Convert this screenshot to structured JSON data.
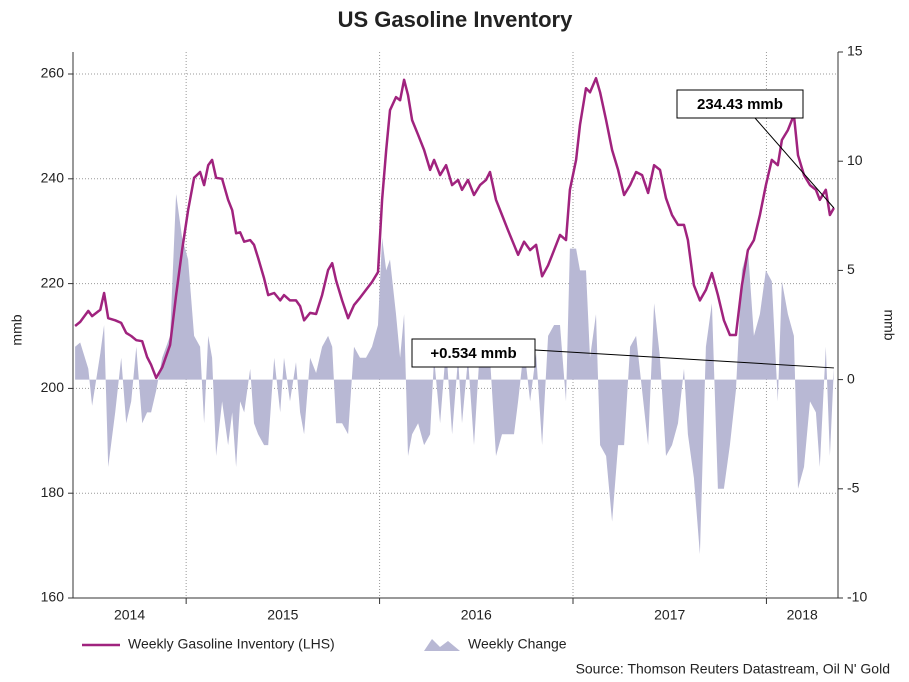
{
  "chart_data": {
    "type": "line_area_dual",
    "title": "US Gasoline Inventory",
    "ylabel": "mmb",
    "y2label": "mmb",
    "source": "Source: Thomson Reuters Datastream, Oil N' Gold",
    "xlim": [
      2014.415,
      2018.37
    ],
    "xticks": [
      2015,
      2016,
      2017,
      2018
    ],
    "xtick_labels": [
      "2014",
      "2015",
      "2016",
      "2017",
      "2018"
    ],
    "ylim": [
      160,
      264.2
    ],
    "yticks": [
      160,
      180,
      200,
      220,
      240,
      260
    ],
    "y2lim": [
      -10,
      15
    ],
    "y2ticks": [
      -10,
      -5,
      0,
      5,
      10,
      15
    ],
    "grid": true,
    "x": [
      2014.426,
      2014.452,
      2014.494,
      2014.514,
      2014.556,
      2014.576,
      2014.597,
      2014.633,
      2014.664,
      2014.69,
      2014.716,
      2014.742,
      2014.773,
      2014.798,
      2014.819,
      2014.845,
      2014.876,
      2014.917,
      2014.948,
      2014.979,
      2015.01,
      2015.041,
      2015.072,
      2015.093,
      2015.114,
      2015.134,
      2015.155,
      2015.186,
      2015.217,
      2015.238,
      2015.258,
      2015.279,
      2015.3,
      2015.331,
      2015.351,
      2015.372,
      2015.403,
      2015.424,
      2015.455,
      2015.486,
      2015.506,
      2015.537,
      2015.568,
      2015.589,
      2015.61,
      2015.641,
      2015.672,
      2015.703,
      2015.734,
      2015.755,
      2015.775,
      2015.806,
      2015.837,
      2015.868,
      2015.899,
      2015.93,
      2015.961,
      2015.992,
      2016.013,
      2016.034,
      2016.054,
      2016.085,
      2016.106,
      2016.127,
      2016.147,
      2016.168,
      2016.199,
      2016.23,
      2016.261,
      2016.282,
      2016.313,
      2016.344,
      2016.375,
      2016.406,
      2016.426,
      2016.457,
      2016.488,
      2016.519,
      2016.55,
      2016.571,
      2016.602,
      2016.633,
      2016.664,
      2016.695,
      2016.716,
      2016.747,
      2016.778,
      2016.809,
      2016.84,
      2016.871,
      2016.902,
      2016.933,
      2016.964,
      2016.984,
      2017.016,
      2017.036,
      2017.067,
      2017.088,
      2017.119,
      2017.14,
      2017.171,
      2017.202,
      2017.233,
      2017.264,
      2017.295,
      2017.326,
      2017.357,
      2017.388,
      2017.419,
      2017.45,
      2017.481,
      2017.512,
      2017.543,
      2017.574,
      2017.594,
      2017.625,
      2017.656,
      2017.687,
      2017.718,
      2017.749,
      2017.78,
      2017.811,
      2017.842,
      2017.873,
      2017.904,
      2017.935,
      2017.966,
      2017.997,
      2018.028,
      2018.059,
      2018.08,
      2018.111,
      2018.142,
      2018.163,
      2018.194,
      2018.225,
      2018.256,
      2018.276,
      2018.307,
      2018.328,
      2018.349
    ],
    "series": [
      {
        "name": "Weekly Gasoline Inventory (LHS)",
        "color": "#a0237e",
        "kind": "line",
        "axis": "y",
        "values": [
          211.9,
          212.7,
          214.8,
          213.8,
          215,
          218.2,
          213.4,
          213,
          212.5,
          210.6,
          210,
          209.2,
          209,
          206,
          204.5,
          202,
          204,
          208.3,
          217.8,
          226.4,
          234,
          240.2,
          241.3,
          238.8,
          242.6,
          243.6,
          240.2,
          240,
          236,
          234,
          229.6,
          229.8,
          228,
          228.3,
          227.4,
          224.9,
          221,
          217.8,
          218.2,
          216.8,
          217.8,
          216.8,
          216.8,
          215.7,
          213,
          214.4,
          214.2,
          217.8,
          222.6,
          223.9,
          220.6,
          216.8,
          213.4,
          215.9,
          217.3,
          218.8,
          220.3,
          222.2,
          236,
          245.5,
          253.1,
          255.6,
          255,
          258.9,
          256,
          251.2,
          248.4,
          245.5,
          241.7,
          243.6,
          240.7,
          242.6,
          238.8,
          239.8,
          237.9,
          239.8,
          236.9,
          238.8,
          239.8,
          241.3,
          236,
          233.1,
          230.2,
          227.4,
          225.5,
          228,
          226.4,
          227.4,
          221.4,
          223.5,
          226.4,
          229.3,
          228.3,
          237.9,
          243.6,
          250.3,
          257.3,
          256.5,
          259.2,
          256.5,
          251.2,
          245.5,
          241.7,
          236.9,
          238.8,
          241.3,
          240.7,
          237.3,
          242.6,
          241.7,
          236.3,
          233.1,
          231.2,
          231.2,
          228.3,
          219.7,
          216.8,
          218.8,
          222,
          217.8,
          213,
          210.2,
          210.2,
          219.7,
          226.4,
          228.3,
          233.1,
          238.8,
          243.6,
          242.6,
          247.4,
          249.3,
          252.2,
          244.5,
          240.7,
          238.8,
          237.9,
          236,
          237.9,
          233.1,
          234.43
        ]
      },
      {
        "name": "Weekly Change",
        "color": "#b8b8d4",
        "kind": "area",
        "axis": "y2",
        "values": [
          1.5,
          1.7,
          0.5,
          -1.2,
          1.2,
          2.5,
          -4,
          -1.5,
          1,
          -2,
          -1,
          1.5,
          -2,
          -1.5,
          -1.5,
          -0.5,
          1,
          2,
          8.5,
          6.5,
          5.5,
          2,
          1.5,
          -2,
          2,
          1,
          -3.5,
          -1,
          -3,
          -1.5,
          -4,
          -1,
          -1.5,
          0.5,
          -2,
          -2.5,
          -3,
          -3,
          1,
          -1.5,
          1,
          -1,
          0.8,
          -1.5,
          -2.5,
          1,
          0.3,
          1.5,
          2,
          1.5,
          -2,
          -2,
          -2.5,
          1.5,
          1,
          1,
          1.5,
          2.5,
          6.5,
          5,
          5.5,
          3,
          1,
          3,
          -3.5,
          -2.5,
          -2,
          -3,
          -2.5,
          1,
          -2,
          1.5,
          -2.5,
          1,
          -2,
          1,
          -3,
          1.5,
          1,
          1,
          -3.5,
          -2.5,
          -2.5,
          -2.5,
          -1,
          1.5,
          -1,
          1.2,
          -3,
          2,
          2.5,
          2.5,
          -1,
          6,
          6,
          5,
          5,
          1,
          3,
          -3,
          -3.5,
          -6.5,
          -3,
          -3,
          1.5,
          2,
          -0.5,
          -3,
          3.5,
          1,
          -3.5,
          -3,
          -2,
          0.5,
          -2.5,
          -4.5,
          -8,
          1.5,
          3.5,
          -5,
          -5,
          -3,
          -0.5,
          5,
          6,
          2,
          3,
          5,
          4.5,
          -1,
          4.5,
          3,
          2,
          -5,
          -4,
          -1,
          -1.5,
          -4,
          1.5,
          -3.5,
          0.534
        ]
      }
    ],
    "annotations": [
      {
        "text": "234.43 mmb"
      },
      {
        "text": "+0.534 mmb"
      }
    ]
  }
}
